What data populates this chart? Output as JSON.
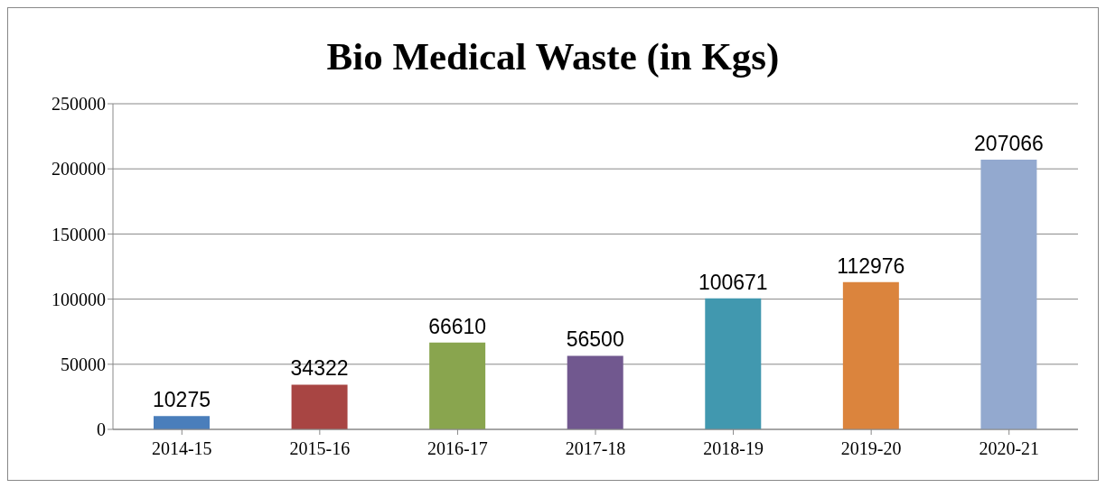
{
  "chart_data": {
    "type": "bar",
    "title": "Bio Medical Waste (in Kgs)",
    "categories": [
      "2014-15",
      "2015-16",
      "2016-17",
      "2017-18",
      "2018-19",
      "2019-20",
      "2020-21"
    ],
    "values": [
      10275,
      34322,
      66610,
      56500,
      100671,
      112976,
      207066
    ],
    "colors": [
      "#4a7ebb",
      "#a84543",
      "#89a54e",
      "#71588f",
      "#4198af",
      "#db843d",
      "#93a9cf"
    ],
    "ylim": [
      0,
      250000
    ],
    "yticks": [
      0,
      50000,
      100000,
      150000,
      200000,
      250000
    ],
    "grid": "y",
    "data_labels": true
  }
}
